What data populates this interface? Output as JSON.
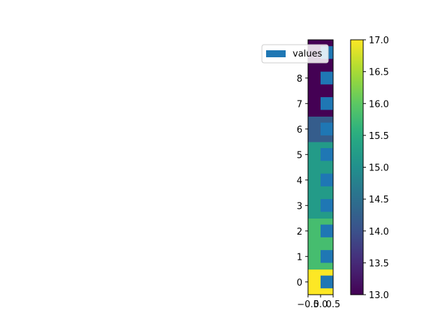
{
  "chart_data": {
    "type": "heatmap",
    "title": "",
    "xlabel": "",
    "ylabel": "",
    "rows": [
      0,
      1,
      2,
      3,
      4,
      5,
      6,
      7,
      8,
      9
    ],
    "cell_values": [
      17.0,
      15.8,
      15.8,
      15.2,
      15.2,
      15.2,
      14.2,
      13.0,
      13.0,
      13.0
    ],
    "xlim": [
      -0.5,
      0.5
    ],
    "ylim": [
      -0.5,
      9.5
    ],
    "x_tick_labels": [
      "−0.5",
      "0.0",
      "0.5"
    ],
    "y_tick_labels": [
      "0",
      "1",
      "2",
      "3",
      "4",
      "5",
      "6",
      "7",
      "8"
    ],
    "colormap": "viridis",
    "colorbar": {
      "range": [
        13.0,
        17.0
      ],
      "tick_labels": [
        "13.0",
        "13.5",
        "14.0",
        "14.5",
        "15.0",
        "15.5",
        "16.0",
        "16.5",
        "17.0"
      ]
    },
    "overlay_bars": {
      "name": "values",
      "orientation": "horizontal",
      "color": "#1f77b4",
      "rows": [
        0,
        1,
        2,
        3,
        4,
        5,
        6,
        7,
        8,
        9
      ],
      "span": [
        0.0,
        0.5
      ]
    },
    "legend": {
      "position": "top-right",
      "entries": [
        "values"
      ]
    },
    "grid": false
  }
}
